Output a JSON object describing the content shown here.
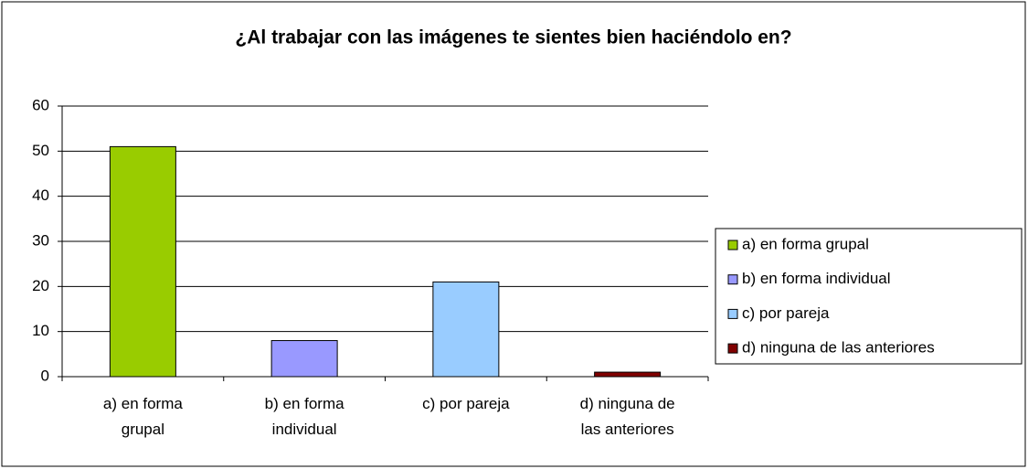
{
  "chart_data": {
    "type": "bar",
    "title": "¿Al trabajar con las imágenes te sientes bien haciéndolo en?",
    "categories": [
      "a) en forma grupal",
      "b) en forma individual",
      "c) por pareja",
      "d) ninguna de las anteriores"
    ],
    "values": [
      51,
      8,
      21,
      1
    ],
    "colors": [
      "#99cc00",
      "#9999ff",
      "#99ccff",
      "#800000"
    ],
    "ylim": [
      0,
      60
    ],
    "yticks": [
      0,
      10,
      20,
      30,
      40,
      50,
      60
    ],
    "grid": true,
    "legend": "right"
  }
}
